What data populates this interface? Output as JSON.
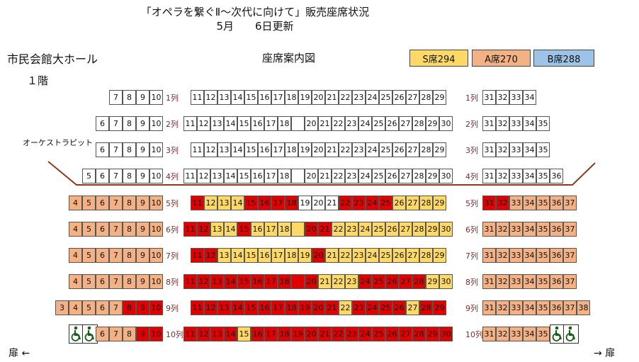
{
  "header": {
    "title": "「オペラを繋ぐⅡ～次代に向けて」販売座席状況",
    "updated": "5月　　6日更新"
  },
  "venue": {
    "hall": "市民会館大ホール",
    "floor": "１階",
    "map_title": "座席案内図",
    "pit": "オーケストラピット"
  },
  "legend": [
    {
      "label": "S席294",
      "color": "#ffd966"
    },
    {
      "label": "A席270",
      "color": "#f4b183"
    },
    {
      "label": "B席288",
      "color": "#9dc3e6"
    }
  ],
  "status_colors": {
    "available_S": "#ffd966",
    "available_A": "#f4b183",
    "sold": "#e00000",
    "unassigned": "#ffffff"
  },
  "doors": {
    "left": "扉 ←",
    "right": "→ 扉"
  },
  "accessible_icon": "wheelchair-icon",
  "rows": [
    {
      "label": "1列",
      "left": [
        "7",
        "8",
        "9",
        "10"
      ],
      "center": [
        "11",
        "12",
        "13",
        "14",
        "15",
        "16",
        "17",
        "18",
        "19",
        "20",
        "21",
        "22",
        "23",
        "24",
        "25",
        "26",
        "27",
        "28",
        "29"
      ],
      "right": [
        "31",
        "32",
        "33",
        "34"
      ],
      "right_label": "1列"
    },
    {
      "label": "2列",
      "left": [
        "6",
        "7",
        "8",
        "9",
        "10"
      ],
      "center": [
        "11",
        "12",
        "13",
        "14",
        "15",
        "16",
        "17",
        "18",
        "",
        "20",
        "21",
        "22",
        "23",
        "24",
        "25",
        "26",
        "27",
        "28",
        "29",
        "30"
      ],
      "right": [
        "31",
        "32",
        "33",
        "34",
        "35"
      ],
      "right_label": "2列"
    },
    {
      "label": "3列",
      "left": [
        "6",
        "7",
        "8",
        "9",
        "10"
      ],
      "center": [
        "11",
        "12",
        "13",
        "14",
        "15",
        "16",
        "17",
        "18",
        "19",
        "20",
        "21",
        "22",
        "23",
        "24",
        "25",
        "26",
        "27",
        "28",
        "29"
      ],
      "right": [
        "31",
        "32",
        "33",
        "34",
        "35"
      ],
      "right_label": "3列"
    },
    {
      "label": "4列",
      "left": [
        "5",
        "6",
        "7",
        "8",
        "9",
        "10"
      ],
      "center": [
        "11",
        "12",
        "13",
        "14",
        "15",
        "16",
        "17",
        "18",
        "",
        "20",
        "21",
        "22",
        "23",
        "24",
        "25",
        "26",
        "27",
        "28",
        "29",
        "30"
      ],
      "right": [
        "31",
        "32",
        "33",
        "34",
        "35",
        "36"
      ],
      "right_label": "4列"
    },
    {
      "label": "5列",
      "left": [
        "4",
        "5",
        "6",
        "7",
        "8",
        "9",
        "10"
      ],
      "center": [
        "11",
        "12",
        "13",
        "14",
        "15",
        "16",
        "17",
        "18",
        "19",
        "20",
        "21",
        "22",
        "23",
        "24",
        "25",
        "26",
        "27",
        "28",
        "29"
      ],
      "right": [
        "31",
        "32",
        "33",
        "34",
        "35",
        "36",
        "37"
      ],
      "right_label": "5列"
    },
    {
      "label": "6列",
      "left": [
        "4",
        "5",
        "6",
        "7",
        "8",
        "9",
        "10"
      ],
      "center": [
        "11",
        "12",
        "13",
        "14",
        "15",
        "16",
        "17",
        "18",
        "",
        "20",
        "21",
        "22",
        "23",
        "24",
        "25",
        "26",
        "27",
        "28",
        "29",
        "30"
      ],
      "right": [
        "31",
        "32",
        "33",
        "34",
        "35",
        "36",
        "37"
      ],
      "right_label": "6列"
    },
    {
      "label": "7列",
      "left": [
        "4",
        "5",
        "6",
        "7",
        "8",
        "9",
        "10"
      ],
      "center": [
        "11",
        "12",
        "13",
        "14",
        "15",
        "16",
        "17",
        "18",
        "19",
        "20",
        "21",
        "22",
        "23",
        "24",
        "25",
        "26",
        "27",
        "28",
        "29"
      ],
      "right": [
        "31",
        "32",
        "33",
        "34",
        "35",
        "36",
        "37"
      ],
      "right_label": "7列"
    },
    {
      "label": "8列",
      "left": [
        "4",
        "5",
        "6",
        "7",
        "8",
        "9",
        "10"
      ],
      "center": [
        "11",
        "12",
        "13",
        "14",
        "15",
        "16",
        "17",
        "18",
        "",
        "20",
        "21",
        "22",
        "23",
        "24",
        "25",
        "26",
        "27",
        "28",
        "29",
        "30"
      ],
      "right": [
        "31",
        "32",
        "33",
        "34",
        "35",
        "36",
        "37"
      ],
      "right_label": "8列"
    },
    {
      "label": "9列",
      "left": [
        "3",
        "4",
        "5",
        "6",
        "7",
        "8",
        "9",
        "10"
      ],
      "center": [
        "11",
        "12",
        "13",
        "14",
        "15",
        "16",
        "17",
        "18",
        "19",
        "20",
        "21",
        "22",
        "23",
        "24",
        "25",
        "26",
        "27",
        "28",
        "29"
      ],
      "right": [
        "31",
        "32",
        "33",
        "34",
        "35",
        "36",
        "37",
        "38"
      ],
      "right_label": "9列"
    },
    {
      "label": "10列",
      "left": [
        "",
        "",
        "6",
        "7",
        "8",
        "9",
        "10"
      ],
      "center": [
        "11",
        "12",
        "13",
        "14",
        "15",
        "16",
        "17",
        "18",
        "19",
        "20",
        "21",
        "22",
        "23",
        "24",
        "25",
        "26",
        "27",
        "28",
        "29",
        "30"
      ],
      "right": [
        "31",
        "32",
        "33",
        "34",
        "35",
        "",
        ""
      ],
      "right_label": "10列"
    }
  ],
  "status": [
    {
      "left": "wwww",
      "center": "wwwwwwwwwwwwwwwwwww",
      "right": "wwww"
    },
    {
      "left": "wwwww",
      "center": "wwwwwwwwwwwwwwwwwwww",
      "right": "wwwww"
    },
    {
      "left": "wwwww",
      "center": "wwwwwwwwwwwwwwwwwww",
      "right": "wwwww"
    },
    {
      "left": "wwwwww",
      "center": "wwwwwwwwwwwwwwwwwwww",
      "right": "wwwwww"
    },
    {
      "left": "aaaaaaa",
      "center": "RSSSRRRRwwwRRRRSSSS",
      "right": "RRaaaaa"
    },
    {
      "left": "aaaaaaa",
      "center": "RRSSRSSSSRRSSSSSSSSS",
      "right": "aaaaaaa"
    },
    {
      "left": "aaaaaaa",
      "center": "RRSSSSSSSRSSSSSSSSS",
      "right": "aaaaaaa"
    },
    {
      "left": "aaaaaaa",
      "center": "RRRRRRRRRRSSSRRRRRSS",
      "right": "aaaaaaa"
    },
    {
      "left": "aaaaaRRR",
      "center": "RRRRRRRRRRRSRRRRSRR",
      "right": "aaaaaaaa"
    },
    {
      "left": "hhaaaRRR",
      "center": "RRRRSRRRRRRRRRRRRRRR",
      "right": "aaaaahh"
    }
  ]
}
